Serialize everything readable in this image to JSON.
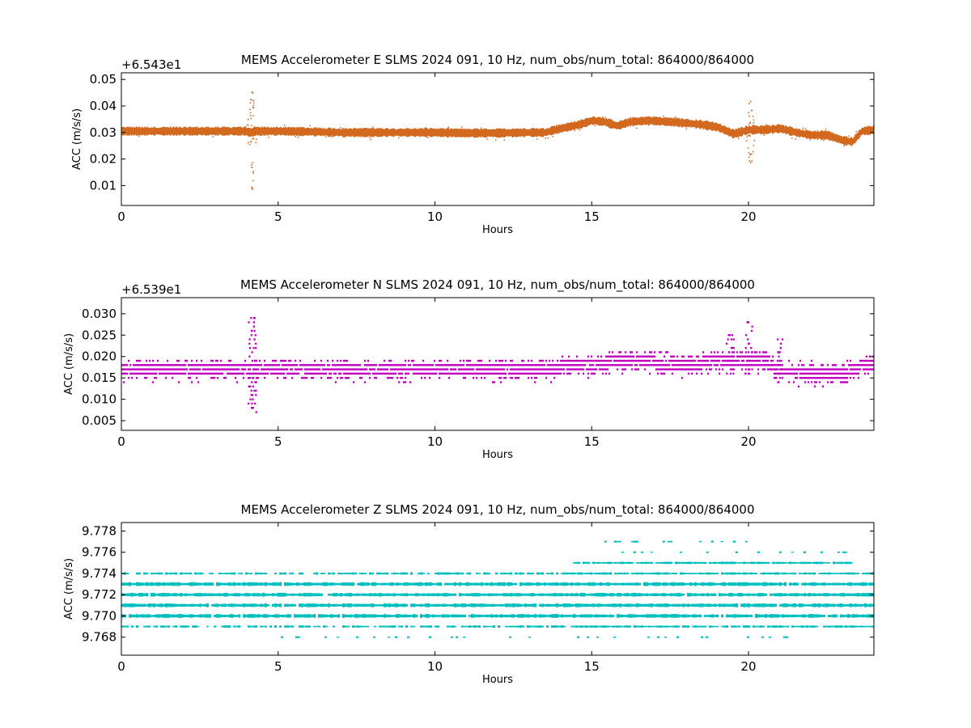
{
  "chart_data": [
    {
      "type": "scatter",
      "title": "MEMS Accelerometer E SLMS 2024 091, 10 Hz, num_obs/num_total: 864000/864000",
      "xlabel": "Hours",
      "ylabel": "ACC (m/s/s)",
      "offset_label": "+6.543e1",
      "xlim": [
        0,
        24
      ],
      "ylim": [
        0.0025,
        0.0525
      ],
      "x_ticks": [
        0,
        5,
        10,
        15,
        20
      ],
      "x_tick_labels": [
        "0",
        "5",
        "10",
        "15",
        "20"
      ],
      "y_ticks": [
        0.01,
        0.02,
        0.03,
        0.04,
        0.05
      ],
      "y_tick_labels": [
        "0.01",
        "0.02",
        "0.03",
        "0.04",
        "0.05"
      ],
      "color": "#d2691e",
      "grid": false,
      "series": [
        {
          "x": [
            0,
            1,
            2,
            3,
            3.9,
            4.1,
            4.3,
            5,
            6,
            7,
            8,
            9,
            10,
            11,
            12,
            13,
            13.5,
            13.8,
            14.2,
            14.6,
            15,
            15.4,
            15.8,
            16.2,
            16.8,
            17.5,
            18,
            18.5,
            19,
            19.5,
            20,
            20.5,
            21,
            21.5,
            22,
            22.5,
            23,
            23.3,
            23.6,
            24
          ],
          "y": [
            0.0305,
            0.0305,
            0.0305,
            0.0305,
            0.0305,
            0.03,
            0.0305,
            0.0305,
            0.0303,
            0.03,
            0.03,
            0.03,
            0.03,
            0.0298,
            0.0298,
            0.03,
            0.03,
            0.031,
            0.032,
            0.033,
            0.0345,
            0.034,
            0.0325,
            0.034,
            0.0345,
            0.034,
            0.0335,
            0.033,
            0.032,
            0.0295,
            0.031,
            0.031,
            0.0315,
            0.03,
            0.029,
            0.029,
            0.027,
            0.0265,
            0.0305,
            0.031
          ]
        }
      ],
      "events": [
        {
          "x": 4.15,
          "min": 0.009,
          "max": 0.0455
        },
        {
          "x": 20.05,
          "min": 0.019,
          "max": 0.042
        }
      ]
    },
    {
      "type": "scatter",
      "title": "MEMS Accelerometer N SLMS 2024 091, 10 Hz, num_obs/num_total: 864000/864000",
      "xlabel": "Hours",
      "ylabel": "ACC (m/s/s)",
      "offset_label": "+6.539e1",
      "xlim": [
        0,
        24
      ],
      "ylim": [
        0.00275,
        0.03375
      ],
      "x_ticks": [
        0,
        5,
        10,
        15,
        20
      ],
      "x_tick_labels": [
        "0",
        "5",
        "10",
        "15",
        "20"
      ],
      "y_ticks": [
        0.005,
        0.01,
        0.015,
        0.02,
        0.025,
        0.03
      ],
      "y_tick_labels": [
        "0.005",
        "0.010",
        "0.015",
        "0.020",
        "0.025",
        "0.030"
      ],
      "color": "#bf00bf",
      "grid": false,
      "series": [
        {
          "x": [
            0,
            1,
            2,
            3,
            4,
            5,
            6,
            7,
            8,
            9,
            10,
            11,
            12,
            13,
            14,
            14.5,
            15,
            15.5,
            16,
            16.5,
            17,
            17.5,
            18,
            18.5,
            19,
            19.5,
            20,
            20.5,
            21,
            21.5,
            22,
            22.5,
            23,
            23.5,
            24
          ],
          "y": [
            0.017,
            0.017,
            0.017,
            0.017,
            0.017,
            0.017,
            0.017,
            0.017,
            0.017,
            0.017,
            0.017,
            0.017,
            0.017,
            0.017,
            0.0175,
            0.018,
            0.0185,
            0.0185,
            0.019,
            0.019,
            0.0185,
            0.018,
            0.018,
            0.0185,
            0.019,
            0.0195,
            0.019,
            0.019,
            0.0165,
            0.0165,
            0.016,
            0.016,
            0.016,
            0.0175,
            0.018
          ]
        }
      ],
      "levels": [
        0.015,
        0.016,
        0.017,
        0.018,
        0.019
      ],
      "events": [
        {
          "x": 4.15,
          "min": 0.007,
          "max": 0.029
        },
        {
          "x": 19.4,
          "min": 0.016,
          "max": 0.025
        },
        {
          "x": 20.0,
          "min": 0.016,
          "max": 0.028
        },
        {
          "x": 20.95,
          "min": 0.014,
          "max": 0.024
        }
      ]
    },
    {
      "type": "scatter",
      "title": "MEMS Accelerometer Z SLMS 2024 091, 10 Hz, num_obs/num_total: 864000/864000",
      "xlabel": "Hours",
      "ylabel": "ACC (m/s/s)",
      "offset_label": "",
      "xlim": [
        0,
        24
      ],
      "ylim": [
        9.7663,
        9.7788
      ],
      "x_ticks": [
        0,
        5,
        10,
        15,
        20
      ],
      "x_tick_labels": [
        "0",
        "5",
        "10",
        "15",
        "20"
      ],
      "y_ticks": [
        9.768,
        9.77,
        9.772,
        9.774,
        9.776,
        9.778
      ],
      "y_tick_labels": [
        "9.768",
        "9.770",
        "9.772",
        "9.774",
        "9.776",
        "9.778"
      ],
      "color": "#00bfbf",
      "grid": false,
      "levels": [
        9.768,
        9.769,
        9.77,
        9.771,
        9.772,
        9.773,
        9.774,
        9.775,
        9.776,
        9.777
      ],
      "level_ranges": [
        {
          "y": 9.777,
          "from": 15.4,
          "to": 20.0,
          "density": "sparse"
        },
        {
          "y": 9.776,
          "from": 15.4,
          "to": 23.5,
          "density": "sparse"
        },
        {
          "y": 9.775,
          "from": 14.4,
          "to": 23.3,
          "density": "medium"
        },
        {
          "y": 9.774,
          "from": 0.0,
          "to": 24.0,
          "density": "medium"
        },
        {
          "y": 9.773,
          "from": 0.0,
          "to": 24.0,
          "density": "heavy"
        },
        {
          "y": 9.772,
          "from": 0.0,
          "to": 24.0,
          "density": "heavy"
        },
        {
          "y": 9.771,
          "from": 0.0,
          "to": 24.0,
          "density": "heavy"
        },
        {
          "y": 9.77,
          "from": 0.0,
          "to": 24.0,
          "density": "heavy"
        },
        {
          "y": 9.769,
          "from": 0.0,
          "to": 24.0,
          "density": "medium"
        },
        {
          "y": 9.768,
          "from": 4.0,
          "to": 21.3,
          "density": "sparse"
        }
      ]
    }
  ]
}
